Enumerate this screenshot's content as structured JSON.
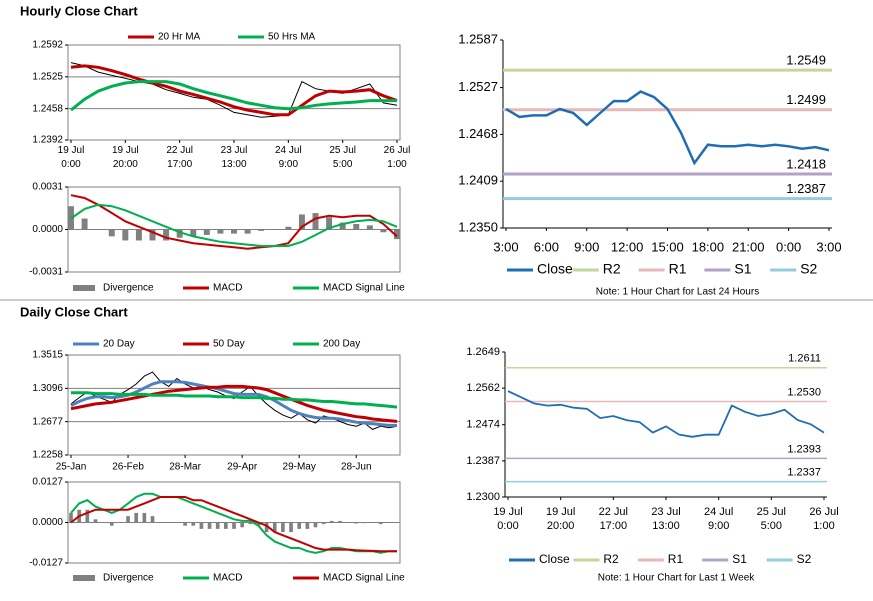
{
  "sections": [
    "Hourly Close Chart",
    "Daily Close Chart"
  ],
  "chart_data": [
    {
      "type": "line",
      "legend": "top",
      "grid": true,
      "ylim": [
        1.2392,
        1.2592
      ],
      "yticks": [
        1.2392,
        1.2458,
        1.2525,
        1.2592
      ],
      "categories": [
        [
          "19 Jul",
          "0:00"
        ],
        null,
        null,
        null,
        [
          "19 Jul",
          "20:00"
        ],
        null,
        null,
        null,
        [
          "22 Jul",
          "17:00"
        ],
        null,
        null,
        null,
        [
          "23 Jul",
          "13:00"
        ],
        null,
        null,
        null,
        [
          "24 Jul",
          "9:00"
        ],
        null,
        null,
        null,
        [
          "25 Jul",
          "5:00"
        ],
        null,
        null,
        null,
        [
          "26 Jul",
          "1:00"
        ]
      ],
      "series": [
        {
          "color": "#000000",
          "style": "line",
          "values": [
            1.2555,
            1.2548,
            1.2535,
            1.2528,
            1.2522,
            1.2515,
            1.251,
            1.2498,
            1.249,
            1.2482,
            1.2478,
            1.2465,
            1.245,
            1.2445,
            1.244,
            1.2442,
            1.2445,
            1.2515,
            1.25,
            1.2495,
            1.249,
            1.25,
            1.251,
            1.247,
            1.2465
          ]
        },
        {
          "name": "20 Hr MA",
          "color": "#c00000",
          "style": "line",
          "values": [
            1.2545,
            1.2548,
            1.2545,
            1.2538,
            1.253,
            1.252,
            1.2512,
            1.2505,
            1.2495,
            1.2488,
            1.248,
            1.2472,
            1.2462,
            1.2455,
            1.245,
            1.2445,
            1.2445,
            1.2465,
            1.2485,
            1.2495,
            1.2493,
            1.2495,
            1.2498,
            1.2485,
            1.2475
          ]
        },
        {
          "name": "50 Hrs MA",
          "color": "#00b050",
          "style": "line",
          "values": [
            1.2455,
            1.2478,
            1.2495,
            1.2505,
            1.2512,
            1.2515,
            1.2515,
            1.2515,
            1.251,
            1.25,
            1.2492,
            1.2485,
            1.2478,
            1.247,
            1.2465,
            1.246,
            1.2458,
            1.246,
            1.2465,
            1.2468,
            1.247,
            1.2472,
            1.2475,
            1.2475,
            1.2475
          ]
        }
      ]
    },
    {
      "type": "combo",
      "legend": "bottom",
      "grid": true,
      "ylim": [
        -0.0031,
        0.0031
      ],
      "yticks": [
        -0.0031,
        {
          "value": 0,
          "label": "0.0000"
        },
        0.0031
      ],
      "series": [
        {
          "name": "Divergence",
          "color": "#808080",
          "style": "bar",
          "values": [
            0.0017,
            0.0008,
            0,
            -0.0005,
            -0.0008,
            -0.0008,
            -0.0008,
            -0.0008,
            -0.0006,
            -0.0005,
            -0.0004,
            -0.0003,
            -0.0003,
            -0.0003,
            -0.0001,
            0,
            0.0002,
            0.0011,
            0.0012,
            0.0009,
            0.0005,
            0.0004,
            0.0003,
            -0.0002,
            -0.0007
          ]
        },
        {
          "name": "MACD",
          "color": "#c00000",
          "style": "line",
          "values": [
            0.0025,
            0.0023,
            0.0018,
            0.0012,
            0.0006,
            0.0002,
            -0.0002,
            -0.0006,
            -0.0008,
            -0.001,
            -0.0011,
            -0.0012,
            -0.0013,
            -0.0014,
            -0.0013,
            -0.0012,
            -0.001,
            0.0002,
            0.0008,
            0.001,
            0.0009,
            0.001,
            0.001,
            0.0004,
            -0.0005
          ]
        },
        {
          "name": "MACD Signal Line",
          "color": "#00b050",
          "style": "line",
          "values": [
            0.0008,
            0.0015,
            0.0018,
            0.0017,
            0.0014,
            0.001,
            0.0006,
            0.0002,
            -0.0002,
            -0.0005,
            -0.0007,
            -0.0009,
            -0.001,
            -0.0011,
            -0.0012,
            -0.0012,
            -0.0012,
            -0.0009,
            -0.0004,
            0.0001,
            0.0004,
            0.0006,
            0.0007,
            0.0006,
            0.0002
          ]
        }
      ]
    },
    {
      "type": "line",
      "legend": "bottom",
      "grid": false,
      "note": "Note: 1 Hour Chart for Last 24 Hours",
      "ylim": [
        1.235,
        1.2587
      ],
      "yticks": [
        {
          "value": 1.235,
          "label": "1.2350"
        },
        1.2409,
        1.2468,
        1.2527,
        1.2587
      ],
      "categories": [
        "3:00",
        null,
        null,
        "6:00",
        null,
        null,
        "9:00",
        null,
        null,
        "12:00",
        null,
        null,
        "15:00",
        null,
        null,
        "18:00",
        null,
        null,
        "21:00",
        null,
        null,
        "0:00",
        null,
        null,
        "3:00"
      ],
      "series": [
        {
          "name": "Close",
          "color": "#1f6eb5",
          "style": "line",
          "values": [
            1.25,
            1.249,
            1.2492,
            1.2492,
            1.25,
            1.2495,
            1.248,
            1.2495,
            1.251,
            1.251,
            1.2522,
            1.2515,
            1.25,
            1.247,
            1.2432,
            1.2455,
            1.2453,
            1.2453,
            1.2455,
            1.2453,
            1.2455,
            1.2453,
            1.245,
            1.2452,
            1.2448
          ]
        }
      ],
      "levels": [
        {
          "name": "R2",
          "color": "#c3d69b",
          "value": 1.2549
        },
        {
          "name": "R1",
          "color": "#e6b9b8",
          "value": 1.2499
        },
        {
          "name": "S1",
          "color": "#b3a2c7",
          "value": 1.2418
        },
        {
          "name": "S2",
          "color": "#93cddd",
          "value": 1.2387
        }
      ]
    },
    {
      "type": "line",
      "legend": "top",
      "grid": true,
      "ylim": [
        1.2258,
        1.3515
      ],
      "yticks": [
        1.2258,
        1.2677,
        1.3096,
        1.3515
      ],
      "categories": [
        "25-Jan",
        null,
        null,
        null,
        null,
        null,
        null,
        "26-Feb",
        null,
        null,
        null,
        null,
        null,
        null,
        "28-Mar",
        null,
        null,
        null,
        null,
        null,
        null,
        "29-Apr",
        null,
        null,
        null,
        null,
        null,
        null,
        "29-May",
        null,
        null,
        null,
        null,
        null,
        null,
        "28-Jun",
        null,
        null,
        null,
        null,
        null
      ],
      "series": [
        {
          "color": "#000000",
          "style": "line",
          "values": [
            1.29,
            1.298,
            1.305,
            1.3,
            1.296,
            1.292,
            1.302,
            1.308,
            1.315,
            1.325,
            1.33,
            1.318,
            1.312,
            1.322,
            1.315,
            1.31,
            1.312,
            1.308,
            1.305,
            1.3,
            1.297,
            1.305,
            1.312,
            1.3,
            1.29,
            1.282,
            1.276,
            1.272,
            1.278,
            1.27,
            1.266,
            1.275,
            1.272,
            1.268,
            1.264,
            1.262,
            1.266,
            1.258,
            1.262,
            1.26,
            1.262
          ]
        },
        {
          "name": "20 Day",
          "color": "#4f81bd",
          "style": "line",
          "values": [
            1.288,
            1.293,
            1.297,
            1.299,
            1.299,
            1.298,
            1.299,
            1.301,
            1.305,
            1.31,
            1.315,
            1.318,
            1.318,
            1.318,
            1.317,
            1.315,
            1.313,
            1.311,
            1.309,
            1.306,
            1.303,
            1.302,
            1.302,
            1.302,
            1.299,
            1.294,
            1.288,
            1.282,
            1.278,
            1.275,
            1.273,
            1.272,
            1.272,
            1.271,
            1.269,
            1.267,
            1.266,
            1.265,
            1.264,
            1.263,
            1.263
          ]
        },
        {
          "name": "50 Day",
          "color": "#c00000",
          "style": "line",
          "values": [
            1.284,
            1.286,
            1.288,
            1.29,
            1.291,
            1.292,
            1.294,
            1.296,
            1.298,
            1.3,
            1.302,
            1.304,
            1.306,
            1.307,
            1.308,
            1.309,
            1.31,
            1.311,
            1.311,
            1.312,
            1.312,
            1.312,
            1.311,
            1.31,
            1.308,
            1.304,
            1.3,
            1.296,
            1.292,
            1.288,
            1.285,
            1.282,
            1.28,
            1.278,
            1.276,
            1.274,
            1.273,
            1.271,
            1.27,
            1.269,
            1.268
          ]
        },
        {
          "name": "200 Day",
          "color": "#00b050",
          "style": "line",
          "values": [
            1.304,
            1.304,
            1.304,
            1.303,
            1.303,
            1.303,
            1.302,
            1.302,
            1.302,
            1.302,
            1.301,
            1.301,
            1.301,
            1.301,
            1.3,
            1.3,
            1.3,
            1.3,
            1.299,
            1.299,
            1.299,
            1.298,
            1.298,
            1.298,
            1.297,
            1.297,
            1.296,
            1.296,
            1.295,
            1.295,
            1.294,
            1.293,
            1.293,
            1.292,
            1.291,
            1.29,
            1.29,
            1.289,
            1.288,
            1.287,
            1.286
          ]
        }
      ]
    },
    {
      "type": "combo",
      "legend": "bottom",
      "grid": true,
      "ylim": [
        -0.0127,
        0.0127
      ],
      "yticks": [
        -0.0127,
        {
          "value": 0,
          "label": "0.0000"
        },
        0.0127
      ],
      "series": [
        {
          "name": "Divergence",
          "color": "#808080",
          "style": "bar",
          "values": [
            0.003,
            0.004,
            0.004,
            0.001,
            0,
            -0.001,
            0,
            0.002,
            0.003,
            0.003,
            0.002,
            0,
            0,
            0,
            -0.001,
            -0.001,
            -0.002,
            -0.002,
            -0.002,
            -0.002,
            -0.002,
            -0.0015,
            -0.0005,
            -0.001,
            -0.003,
            -0.003,
            -0.003,
            -0.003,
            -0.002,
            -0.002,
            -0.0015,
            -0.0005,
            0.0005,
            0.0005,
            0,
            -0.0003,
            -0.0002,
            -0.0001,
            -0.0005,
            0,
            0
          ]
        },
        {
          "name": "MACD",
          "color": "#00b050",
          "style": "line",
          "values": [
            0.003,
            0.006,
            0.007,
            0.005,
            0.004,
            0.003,
            0.004,
            0.006,
            0.008,
            0.009,
            0.009,
            0.008,
            0.008,
            0.008,
            0.007,
            0.006,
            0.005,
            0.004,
            0.003,
            0.002,
            0.001,
            0.0005,
            0.0005,
            -0.001,
            -0.004,
            -0.006,
            -0.007,
            -0.008,
            -0.008,
            -0.009,
            -0.0095,
            -0.009,
            -0.008,
            -0.008,
            -0.0085,
            -0.009,
            -0.009,
            -0.009,
            -0.0095,
            -0.009,
            -0.009
          ]
        },
        {
          "name": "MACD Signal Line",
          "color": "#c00000",
          "style": "line",
          "values": [
            0,
            0.002,
            0.003,
            0.004,
            0.004,
            0.004,
            0.004,
            0.004,
            0.005,
            0.006,
            0.007,
            0.008,
            0.008,
            0.008,
            0.008,
            0.007,
            0.007,
            0.006,
            0.005,
            0.004,
            0.003,
            0.002,
            0.001,
            0,
            -0.001,
            -0.003,
            -0.004,
            -0.005,
            -0.006,
            -0.007,
            -0.008,
            -0.0085,
            -0.0085,
            -0.0085,
            -0.0085,
            -0.0087,
            -0.0088,
            -0.0089,
            -0.009,
            -0.009,
            -0.009
          ]
        }
      ]
    },
    {
      "type": "line",
      "legend": "bottom",
      "grid": false,
      "note": "Note: 1 Hour Chart for Last 1 Week",
      "ylim": [
        1.23,
        1.2649
      ],
      "yticks": [
        {
          "value": 1.23,
          "label": "1.2300"
        },
        1.2387,
        1.2474,
        1.2562,
        1.2649
      ],
      "categories": [
        [
          "19 Jul",
          "0:00"
        ],
        null,
        null,
        null,
        [
          "19 Jul",
          "20:00"
        ],
        null,
        null,
        null,
        [
          "22 Jul",
          "17:00"
        ],
        null,
        null,
        null,
        [
          "23 Jul",
          "13:00"
        ],
        null,
        null,
        null,
        [
          "24 Jul",
          "9:00"
        ],
        null,
        null,
        null,
        [
          "25 Jul",
          "5:00"
        ],
        null,
        null,
        null,
        [
          "26 Jul",
          "1:00"
        ]
      ],
      "series": [
        {
          "name": "Close",
          "color": "#1f6eb5",
          "style": "line",
          "values": [
            1.2555,
            1.254,
            1.2525,
            1.252,
            1.2522,
            1.2515,
            1.2512,
            1.249,
            1.2495,
            1.2485,
            1.248,
            1.2455,
            1.247,
            1.245,
            1.2445,
            1.245,
            1.245,
            1.252,
            1.2505,
            1.2495,
            1.25,
            1.251,
            1.2485,
            1.2475,
            1.2455
          ]
        }
      ],
      "levels": [
        {
          "name": "R2",
          "color": "#c3d69b",
          "value": 1.2611
        },
        {
          "name": "R1",
          "color": "#e6b9b8",
          "value": 1.253,
          "value_label": "1.2530"
        },
        {
          "name": "S1",
          "color": "#b3a2c7",
          "value": 1.2393
        },
        {
          "name": "S2",
          "color": "#93cddd",
          "value": 1.2337
        }
      ]
    }
  ]
}
